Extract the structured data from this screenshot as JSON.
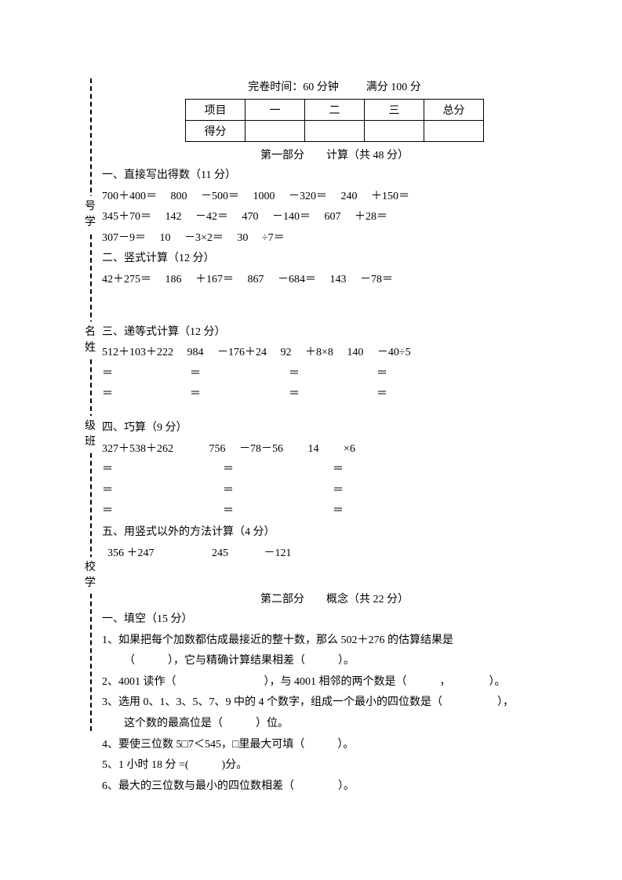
{
  "binding": {
    "labels": [
      "号学",
      "名姓",
      "级班",
      "校学"
    ],
    "positions": [
      150,
      310,
      430,
      610
    ]
  },
  "header": {
    "time_label": "完卷时间：60 分钟",
    "full_label": "满分 100 分"
  },
  "score_table": {
    "row1": [
      "项目",
      "一",
      "二",
      "三",
      "总分"
    ],
    "row2_label": "得分"
  },
  "part1": {
    "title": "第一部分　　计算（共 48 分）",
    "s1": {
      "title": "一、直接写出得数（11 分）",
      "l1": "700＋400＝　 800　 －500＝　 1000　 －320＝　 240　 ＋150＝",
      "l2": "345＋70＝　 142　 －42＝　 470　 －140＝　 607　 ＋28＝",
      "l3": "307－9＝　 10　 －3×2＝　 30　 ÷7＝"
    },
    "s2": {
      "title": "二、竖式计算（12 分）",
      "l1": "42＋275＝　 186　 ＋167＝　 867　 －684＝　 143　 －78＝"
    },
    "s3": {
      "title": "三、递等式计算（12 分）",
      "l1": "512＋103＋222　 984　 －176＋24　 92　 ＋8×8　 140　 －40÷5",
      "l2": "＝　　　　　　　＝　　　　　　　　＝　　　　　　　＝",
      "l3": "＝　　　　　　　＝　　　　　　　　＝　　　　　　　＝"
    },
    "s4": {
      "title": "四、巧算（9 分）",
      "l1": "327＋538＋262　　　 756　 －78－56　　 14　　 ×6",
      "l2": "＝　　　　　　　　　　＝　　　　　　　　　＝",
      "l3": "＝　　　　　　　　　　＝　　　　　　　　　＝",
      "l4": "＝　　　　　　　　　　＝　　　　　　　　　＝"
    },
    "s5": {
      "title": "五、用竖式以外的方法计算（4 分）",
      "l1": "  356 ＋247　　　　　 245　　　 －121"
    }
  },
  "part2": {
    "title": "第二部分　　概念（共 22 分）",
    "s1_title": "一、填空（15 分）",
    "q1a": "1、如果把每个加数都估成最接近的整十数，那么 502＋276 的估算结果是",
    "q1b": "（　　　），它与精确计算结果相差（　　　）。",
    "q2": "2、4001 读作（　　　　　　　　），与 4001 相邻的两个数是（　　　，　　　　）。",
    "q3a": "3、选用 0、1、3、5、7、9 中的 4 个数字，组成一个最小的四位数是（　　　　　），",
    "q3b": "这个数的最高位是（　　　）位。",
    "q4": "4、要使三位数 5□7＜545，□里最大可填（　　　）。",
    "q5": "5、1 小时 18 分 =(　　　)分。",
    "q6": "6、最大的三位数与最小的四位数相差（　　　　）。"
  }
}
